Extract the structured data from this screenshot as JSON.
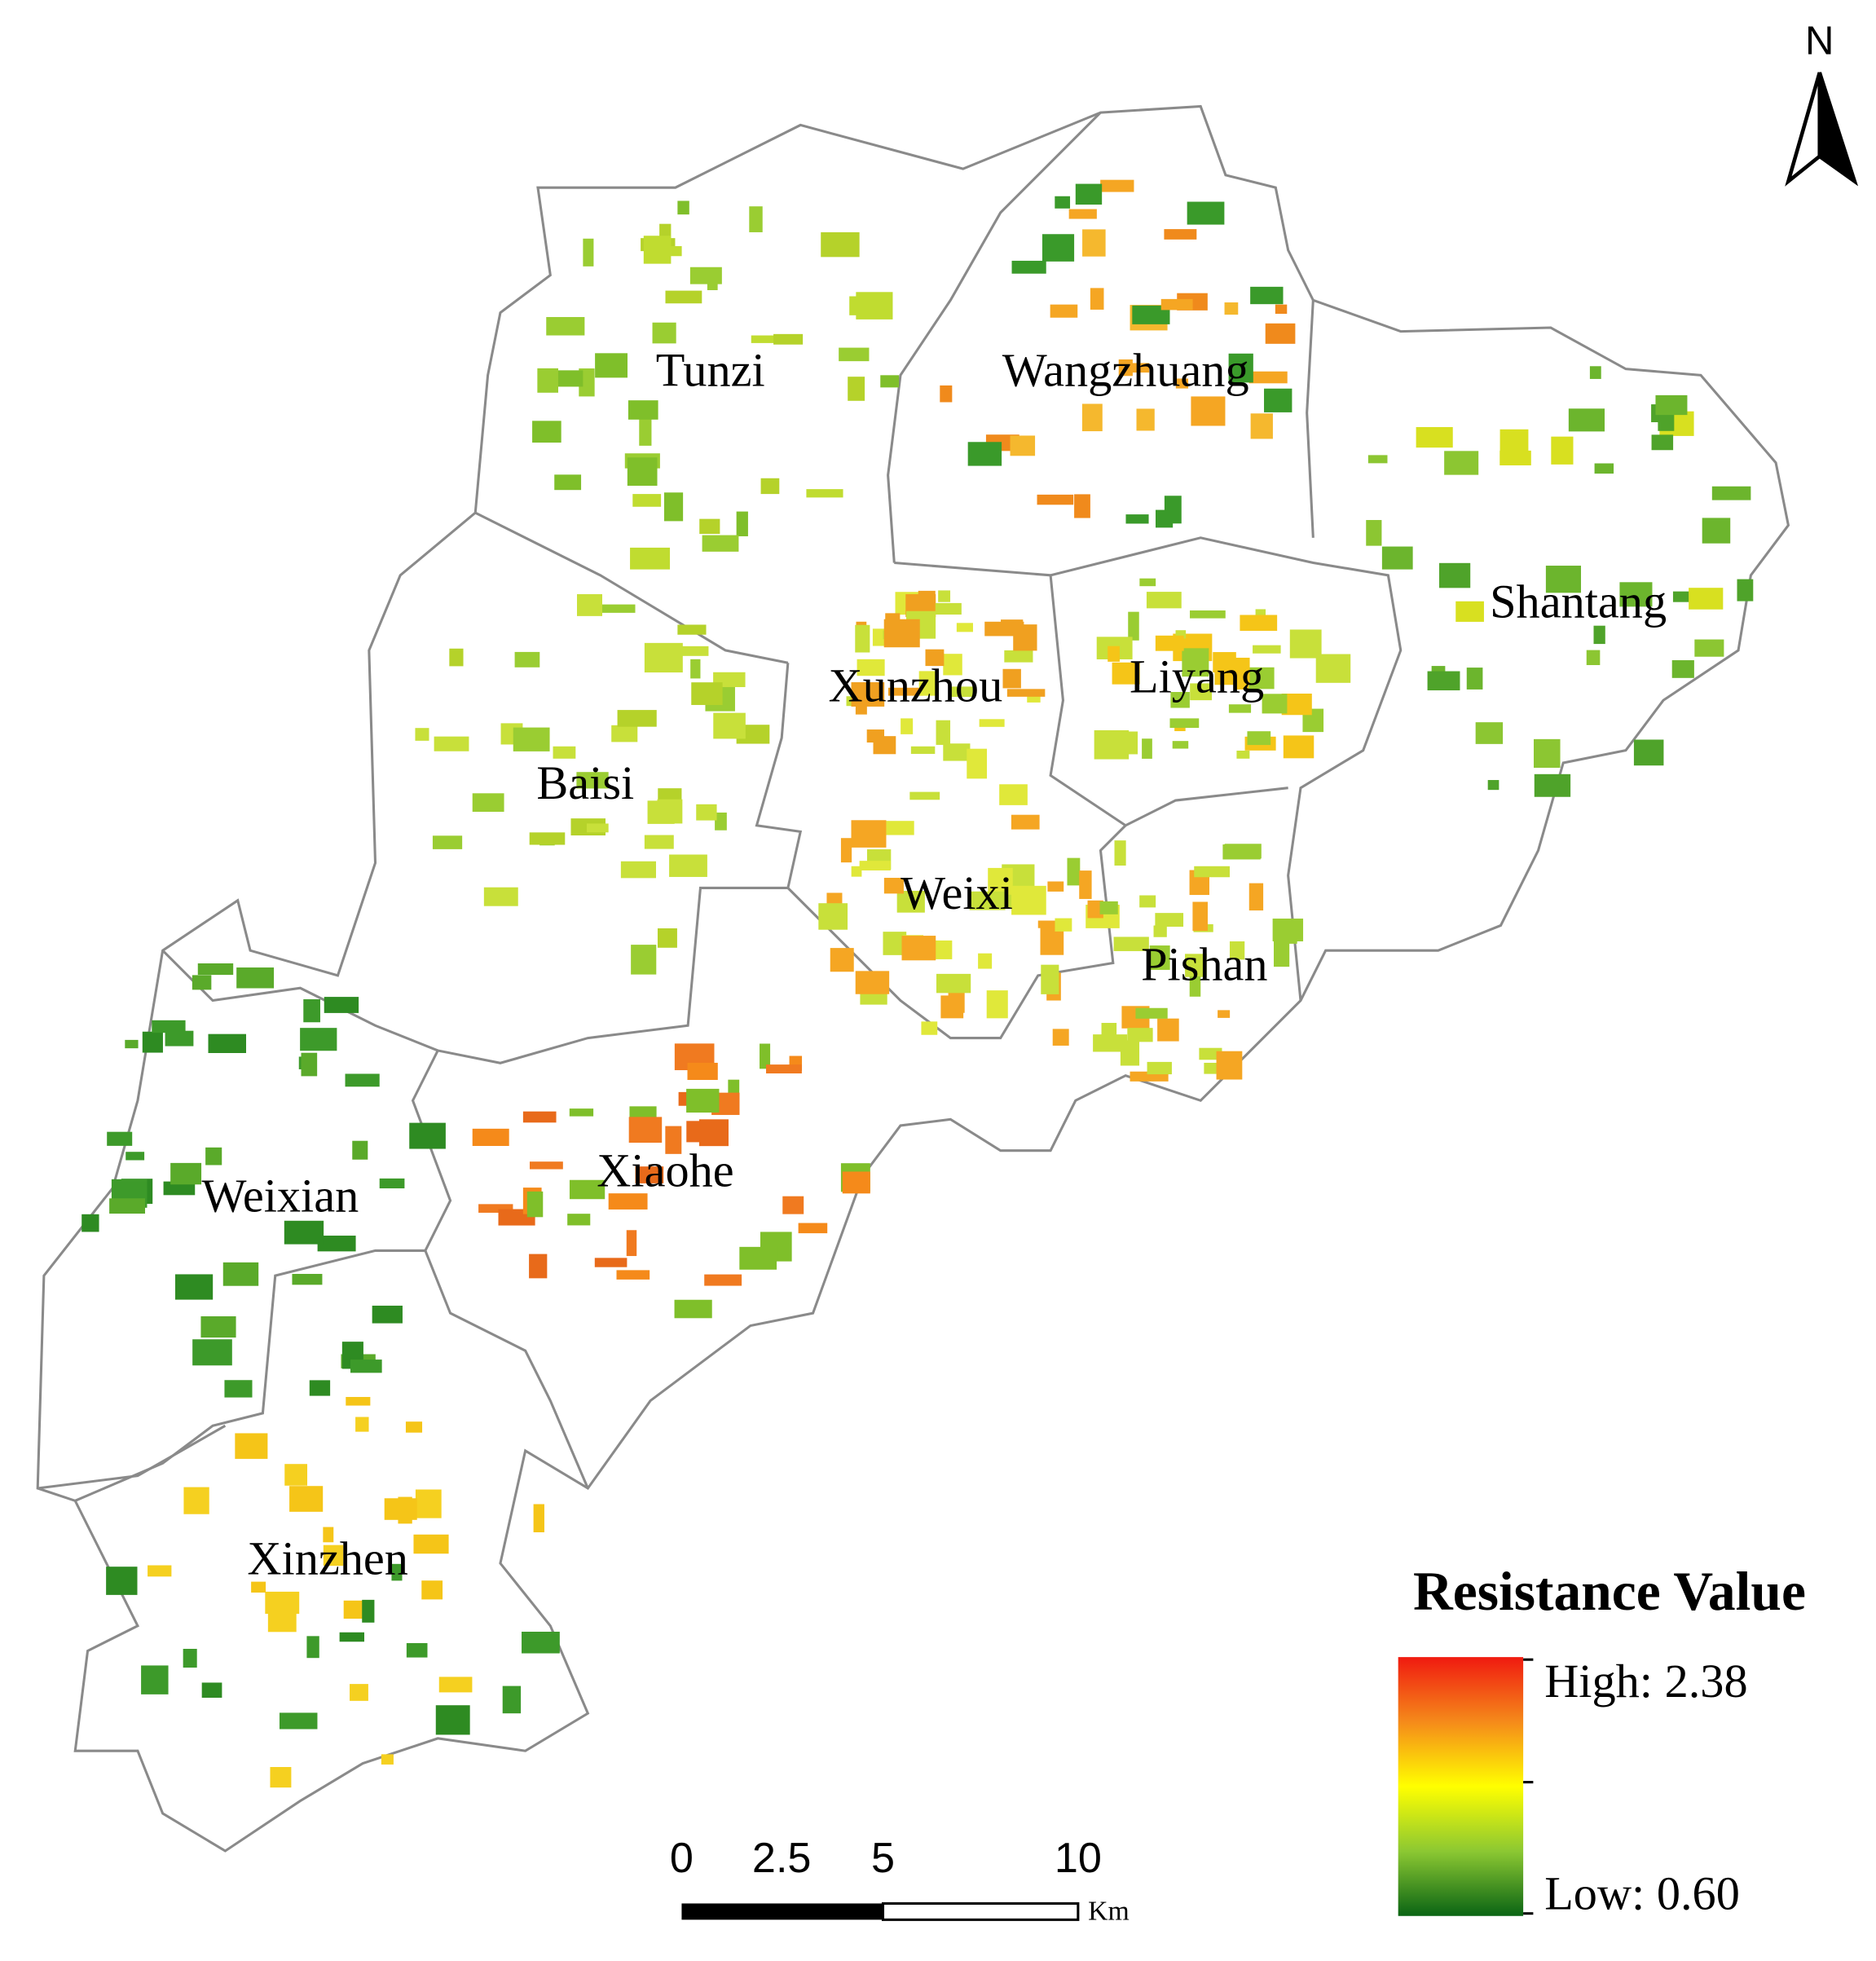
{
  "north": "N",
  "regions": [
    {
      "name": "Tunzi"
    },
    {
      "name": "Wangzhuang"
    },
    {
      "name": "Shantang"
    },
    {
      "name": "Xunzhou"
    },
    {
      "name": "Liyang"
    },
    {
      "name": "Baisi"
    },
    {
      "name": "Weixi"
    },
    {
      "name": "Pishan"
    },
    {
      "name": "Weixian"
    },
    {
      "name": "Xiaohe"
    },
    {
      "name": "Xinzhen"
    }
  ],
  "legend": {
    "title": "Resistance Value",
    "high": "High: 2.38",
    "low": "Low: 0.60"
  },
  "scale_bar": {
    "labels": [
      "0",
      "2.5",
      "5",
      "10"
    ],
    "unit": "Km"
  }
}
